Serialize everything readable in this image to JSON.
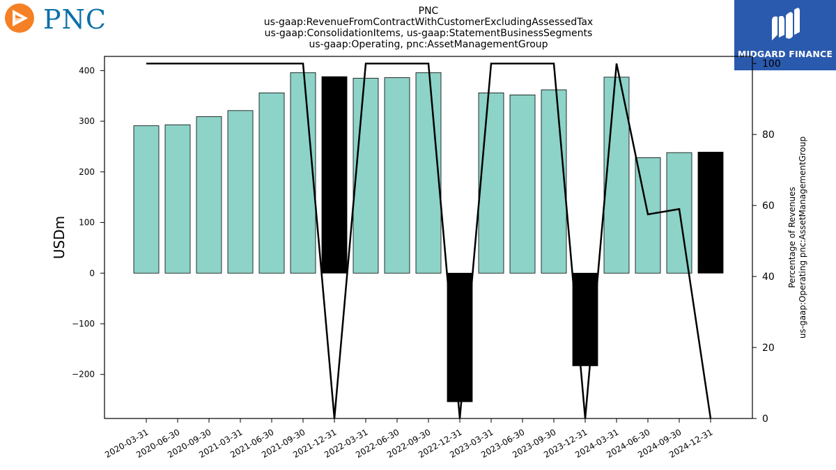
{
  "header": {
    "title_lines": [
      "PNC",
      "us-gaap:RevenueFromContractWithCustomerExcludingAssessedTax",
      "us-gaap:ConsolidationItems, us-gaap:StatementBusinessSegments",
      "us-gaap:Operating, pnc:AssetManagementGroup"
    ]
  },
  "logos": {
    "left": {
      "text": "PNC",
      "icon": "pnc-triangle-logo-icon",
      "color": "#0b6fa8",
      "accent": "#f58025"
    },
    "right": {
      "text": "MIDGARD FINANCE",
      "icon": "midgard-m-logo-icon",
      "color": "#2a5aad"
    }
  },
  "chart_data": {
    "type": "bar",
    "categories": [
      "2020-03-31",
      "2020-06-30",
      "2020-09-30",
      "2021-03-31",
      "2021-06-30",
      "2021-09-30",
      "2021-12-31",
      "2022-03-31",
      "2022-06-30",
      "2022-09-30",
      "2022-12-31",
      "2023-03-31",
      "2023-06-30",
      "2023-09-30",
      "2023-12-31",
      "2024-03-31",
      "2024-06-30",
      "2024-09-30",
      "2024-12-31"
    ],
    "values": [
      291,
      293,
      309,
      321,
      356,
      396,
      388,
      385,
      386,
      396,
      -254,
      356,
      352,
      362,
      -183,
      387,
      228,
      238,
      239
    ],
    "highlighted": [
      false,
      false,
      false,
      false,
      false,
      false,
      true,
      false,
      false,
      false,
      true,
      false,
      false,
      false,
      true,
      false,
      false,
      false,
      true
    ],
    "bar_color": "#8dd3c7",
    "highlight_color": "#000000",
    "ylabel": "USDm",
    "ylim": [
      -287,
      428
    ],
    "yticks": [
      -200,
      -100,
      0,
      100,
      200,
      300,
      400
    ],
    "secondary": {
      "type": "line",
      "ylabel_lines": [
        "Percentage of Revenues",
        "us-gaap:Operating pnc:AssetManagementGroup"
      ],
      "values": [
        100,
        100,
        100,
        100,
        100,
        100,
        0,
        100,
        100,
        100,
        0,
        100,
        100,
        100,
        0,
        100,
        57.5,
        59,
        0
      ],
      "ylim": [
        0,
        102
      ],
      "yticks": [
        0,
        20,
        40,
        60,
        80,
        100
      ],
      "color": "#000000"
    },
    "grid": false
  }
}
